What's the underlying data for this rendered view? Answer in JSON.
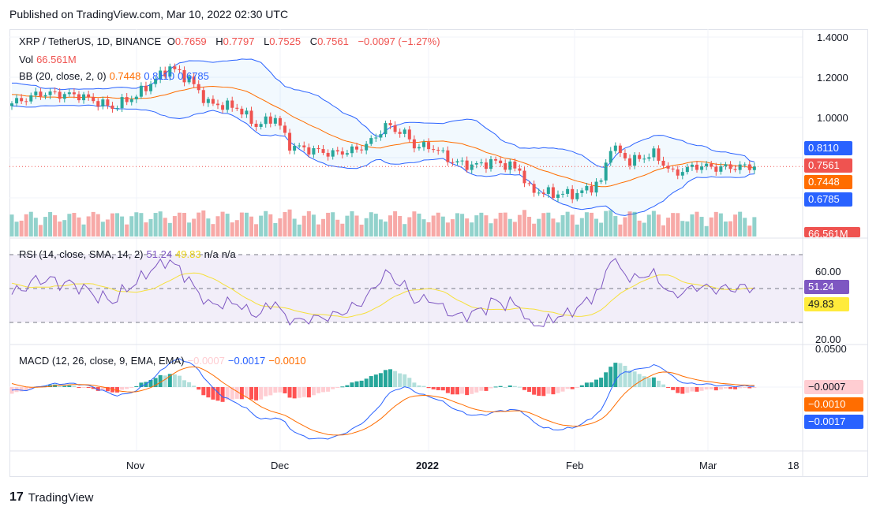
{
  "published": "Published on TradingView.com, Mar 10, 2022 02:30 UTC",
  "legend": {
    "symbol": "XRP / TetherUS, 1D, BINANCE",
    "o_label": "O",
    "o": "0.7659",
    "h_label": "H",
    "h": "0.7797",
    "l_label": "L",
    "l": "0.7525",
    "c_label": "C",
    "c": "0.7561",
    "change": "−0.0097 (−1.27%)",
    "vol_label": "Vol",
    "vol": "66.561M",
    "bb_label": "BB (20, close, 2, 0)",
    "bb_basis": "0.7448",
    "bb_upper": "0.8110",
    "bb_lower": "0.6785",
    "rsi_label": "RSI (14, close, SMA, 14, 2)",
    "rsi": "51.24",
    "rsi_ma": "49.83",
    "na1": "n/a",
    "na2": "n/a",
    "macd_label": "MACD (12, 26, close, 9, EMA, EMA)",
    "macd_hist": "−0.0007",
    "macd": "−0.0017",
    "macd_signal": "−0.0010"
  },
  "price_axis": [
    "1.4000",
    "1.2000",
    "1.0000"
  ],
  "rsi_axis": [
    "60.00",
    "20.00"
  ],
  "macd_axis": [
    "0.0500"
  ],
  "tags": {
    "upper": "0.8110",
    "close": "0.7561",
    "basis": "0.7448",
    "lower": "0.6785",
    "vol": "66.561M",
    "rsi": "51.24",
    "rsi_ma": "49.83",
    "hist": "−0.0007",
    "signal": "−0.0010",
    "macd": "−0.0017"
  },
  "time_axis": [
    "Nov",
    "Dec",
    "2022",
    "Feb",
    "Mar",
    "18"
  ],
  "brand": "TradingView",
  "colors": {
    "up": "#26a69a",
    "down": "#ef5350",
    "bb": "#2962ff",
    "basis": "#ff6d00",
    "rsi": "#7e57c2",
    "rsi_ma": "#f6e03a"
  },
  "chart_data": {
    "type": "candlestick",
    "title": "XRP / TetherUS, 1D, BINANCE",
    "x_unit": "day index (0 = ~Oct 5, 2021; 155 = Mar 10, 2022)",
    "ylim": [
      0.58,
      1.45
    ],
    "close_keypoints": [
      [
        -30,
        1.05
      ],
      [
        -15,
        1.15
      ],
      [
        0,
        1.07
      ],
      [
        6,
        1.12
      ],
      [
        14,
        1.11
      ],
      [
        21,
        1.05
      ],
      [
        26,
        1.11
      ],
      [
        33,
        1.25
      ],
      [
        37,
        1.19
      ],
      [
        41,
        1.07
      ],
      [
        47,
        1.05
      ],
      [
        51,
        0.96
      ],
      [
        55,
        1.0
      ],
      [
        58,
        0.86
      ],
      [
        62,
        0.84
      ],
      [
        67,
        0.82
      ],
      [
        72,
        0.84
      ],
      [
        75,
        0.88
      ],
      [
        78,
        0.96
      ],
      [
        82,
        0.92
      ],
      [
        84,
        0.86
      ],
      [
        88,
        0.85
      ],
      [
        92,
        0.78
      ],
      [
        96,
        0.76
      ],
      [
        101,
        0.78
      ],
      [
        106,
        0.74
      ],
      [
        108,
        0.64
      ],
      [
        113,
        0.62
      ],
      [
        118,
        0.62
      ],
      [
        123,
        0.68
      ],
      [
        125,
        0.86
      ],
      [
        129,
        0.78
      ],
      [
        134,
        0.82
      ],
      [
        138,
        0.72
      ],
      [
        143,
        0.76
      ],
      [
        147,
        0.75
      ],
      [
        155,
        0.7561
      ]
    ],
    "indicators": {
      "bb": [
        20,
        2
      ],
      "rsi": [
        14,
        14
      ],
      "macd": [
        12,
        26,
        9
      ]
    }
  }
}
